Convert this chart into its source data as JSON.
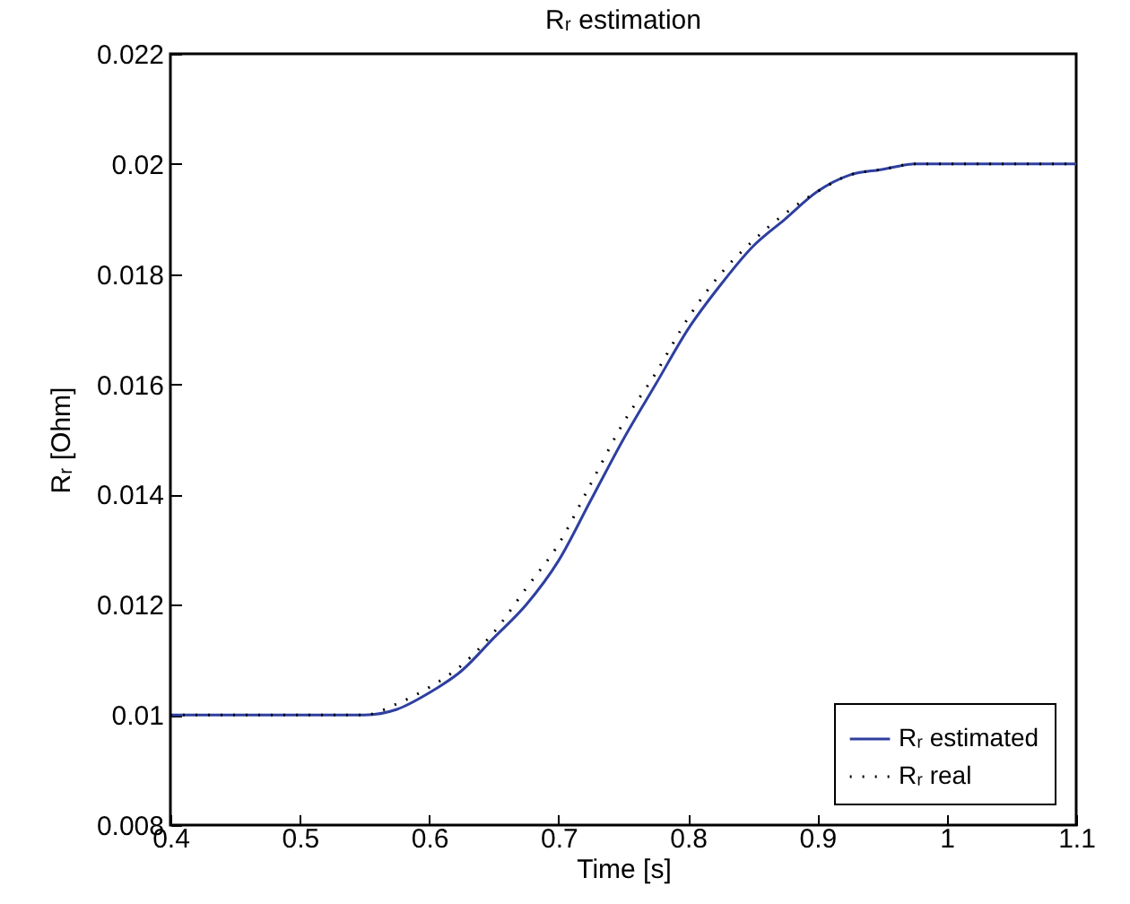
{
  "chart_data": {
    "type": "line",
    "title": "Rᵣ estimation",
    "xlabel": "Time [s]",
    "ylabel": "Rᵣ [Ohm]",
    "xlim": [
      0.4,
      1.1
    ],
    "xticks": [
      0.4,
      0.5,
      0.6,
      0.7,
      0.8,
      0.9,
      1,
      1.1
    ],
    "ylim": [
      0.008,
      0.022
    ],
    "yticks": [
      0.008,
      0.01,
      0.012,
      0.014,
      0.016,
      0.018,
      0.02,
      0.022
    ],
    "grid": false,
    "legend": "bottom right",
    "marker": "none",
    "x": [
      0.4,
      0.45,
      0.5,
      0.55,
      0.575,
      0.6,
      0.625,
      0.65,
      0.675,
      0.7,
      0.725,
      0.75,
      0.775,
      0.8,
      0.825,
      0.85,
      0.875,
      0.9,
      0.925,
      0.95,
      0.975,
      1,
      1.05,
      1.1
    ],
    "series": [
      {
        "name": "Rᵣ estimated",
        "color": "#2e3fa0",
        "line_style": "solid",
        "values": [
          0.01,
          0.01,
          0.01,
          0.01,
          0.0101,
          0.0104,
          0.0108,
          0.0114,
          0.012,
          0.0128,
          0.0139,
          0.015,
          0.016,
          0.017,
          0.0178,
          0.0185,
          0.019,
          0.0195,
          0.0198,
          0.0199,
          0.02,
          0.02,
          0.02,
          0.02
        ]
      },
      {
        "name": "Rᵣ real",
        "color": "#000000",
        "line_style": "dotted",
        "values": [
          0.01,
          0.01,
          0.01,
          0.01,
          0.0102,
          0.0105,
          0.0109,
          0.0115,
          0.0123,
          0.0131,
          0.0142,
          0.0153,
          0.0162,
          0.0172,
          0.018,
          0.0186,
          0.0191,
          0.0195,
          0.0198,
          0.0199,
          0.02,
          0.02,
          0.02,
          0.02
        ]
      }
    ]
  }
}
